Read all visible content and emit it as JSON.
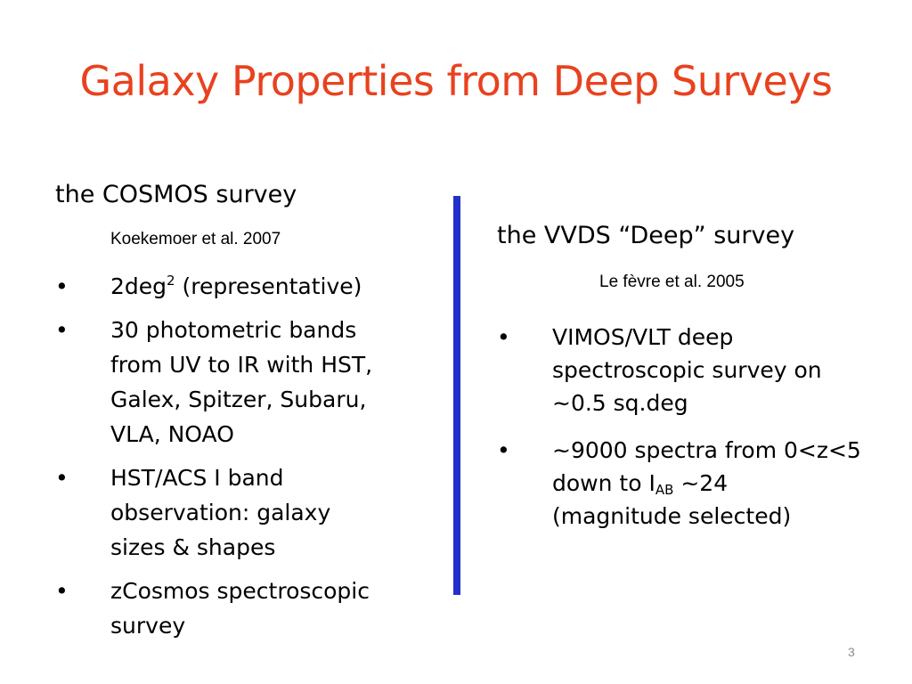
{
  "slide": {
    "title": "Galaxy Properties from Deep Surveys",
    "page_number": "3",
    "divider_color": "#2330c9",
    "title_color": "#e8421e"
  },
  "left": {
    "heading": "the COSMOS survey",
    "citation": "Koekemoer et al. 2007",
    "bullet_char": "•",
    "b1_text": "2deg",
    "b1_sup": "2",
    "b1_rest": " (representative)",
    "b2_line1": "30 photometric bands",
    "b2_line2": "from UV to IR with HST,",
    "b2_line3": "Galex, Spitzer, Subaru,",
    "b2_line4": "VLA, NOAO",
    "b3_line1": "HST/ACS I band",
    "b3_line2": "observation: galaxy",
    "b3_line3": "sizes & shapes",
    "b4_line1": "zCosmos spectroscopic",
    "b4_line2": "survey"
  },
  "right": {
    "heading": "the VVDS “Deep” survey",
    "citation": "Le fèvre et al. 2005",
    "bullet_char": "•",
    "b1_line1": "VIMOS/VLT deep",
    "b1_line2": "spectroscopic survey  on",
    "b1_line3": "~0.5 sq.deg",
    "b2_line1": "~9000 spectra from 0<z<5",
    "b2_line2a": "down to I",
    "b2_sub": "AB",
    "b2_line2b": " ~24",
    "b2_line3": "(magnitude selected)"
  }
}
